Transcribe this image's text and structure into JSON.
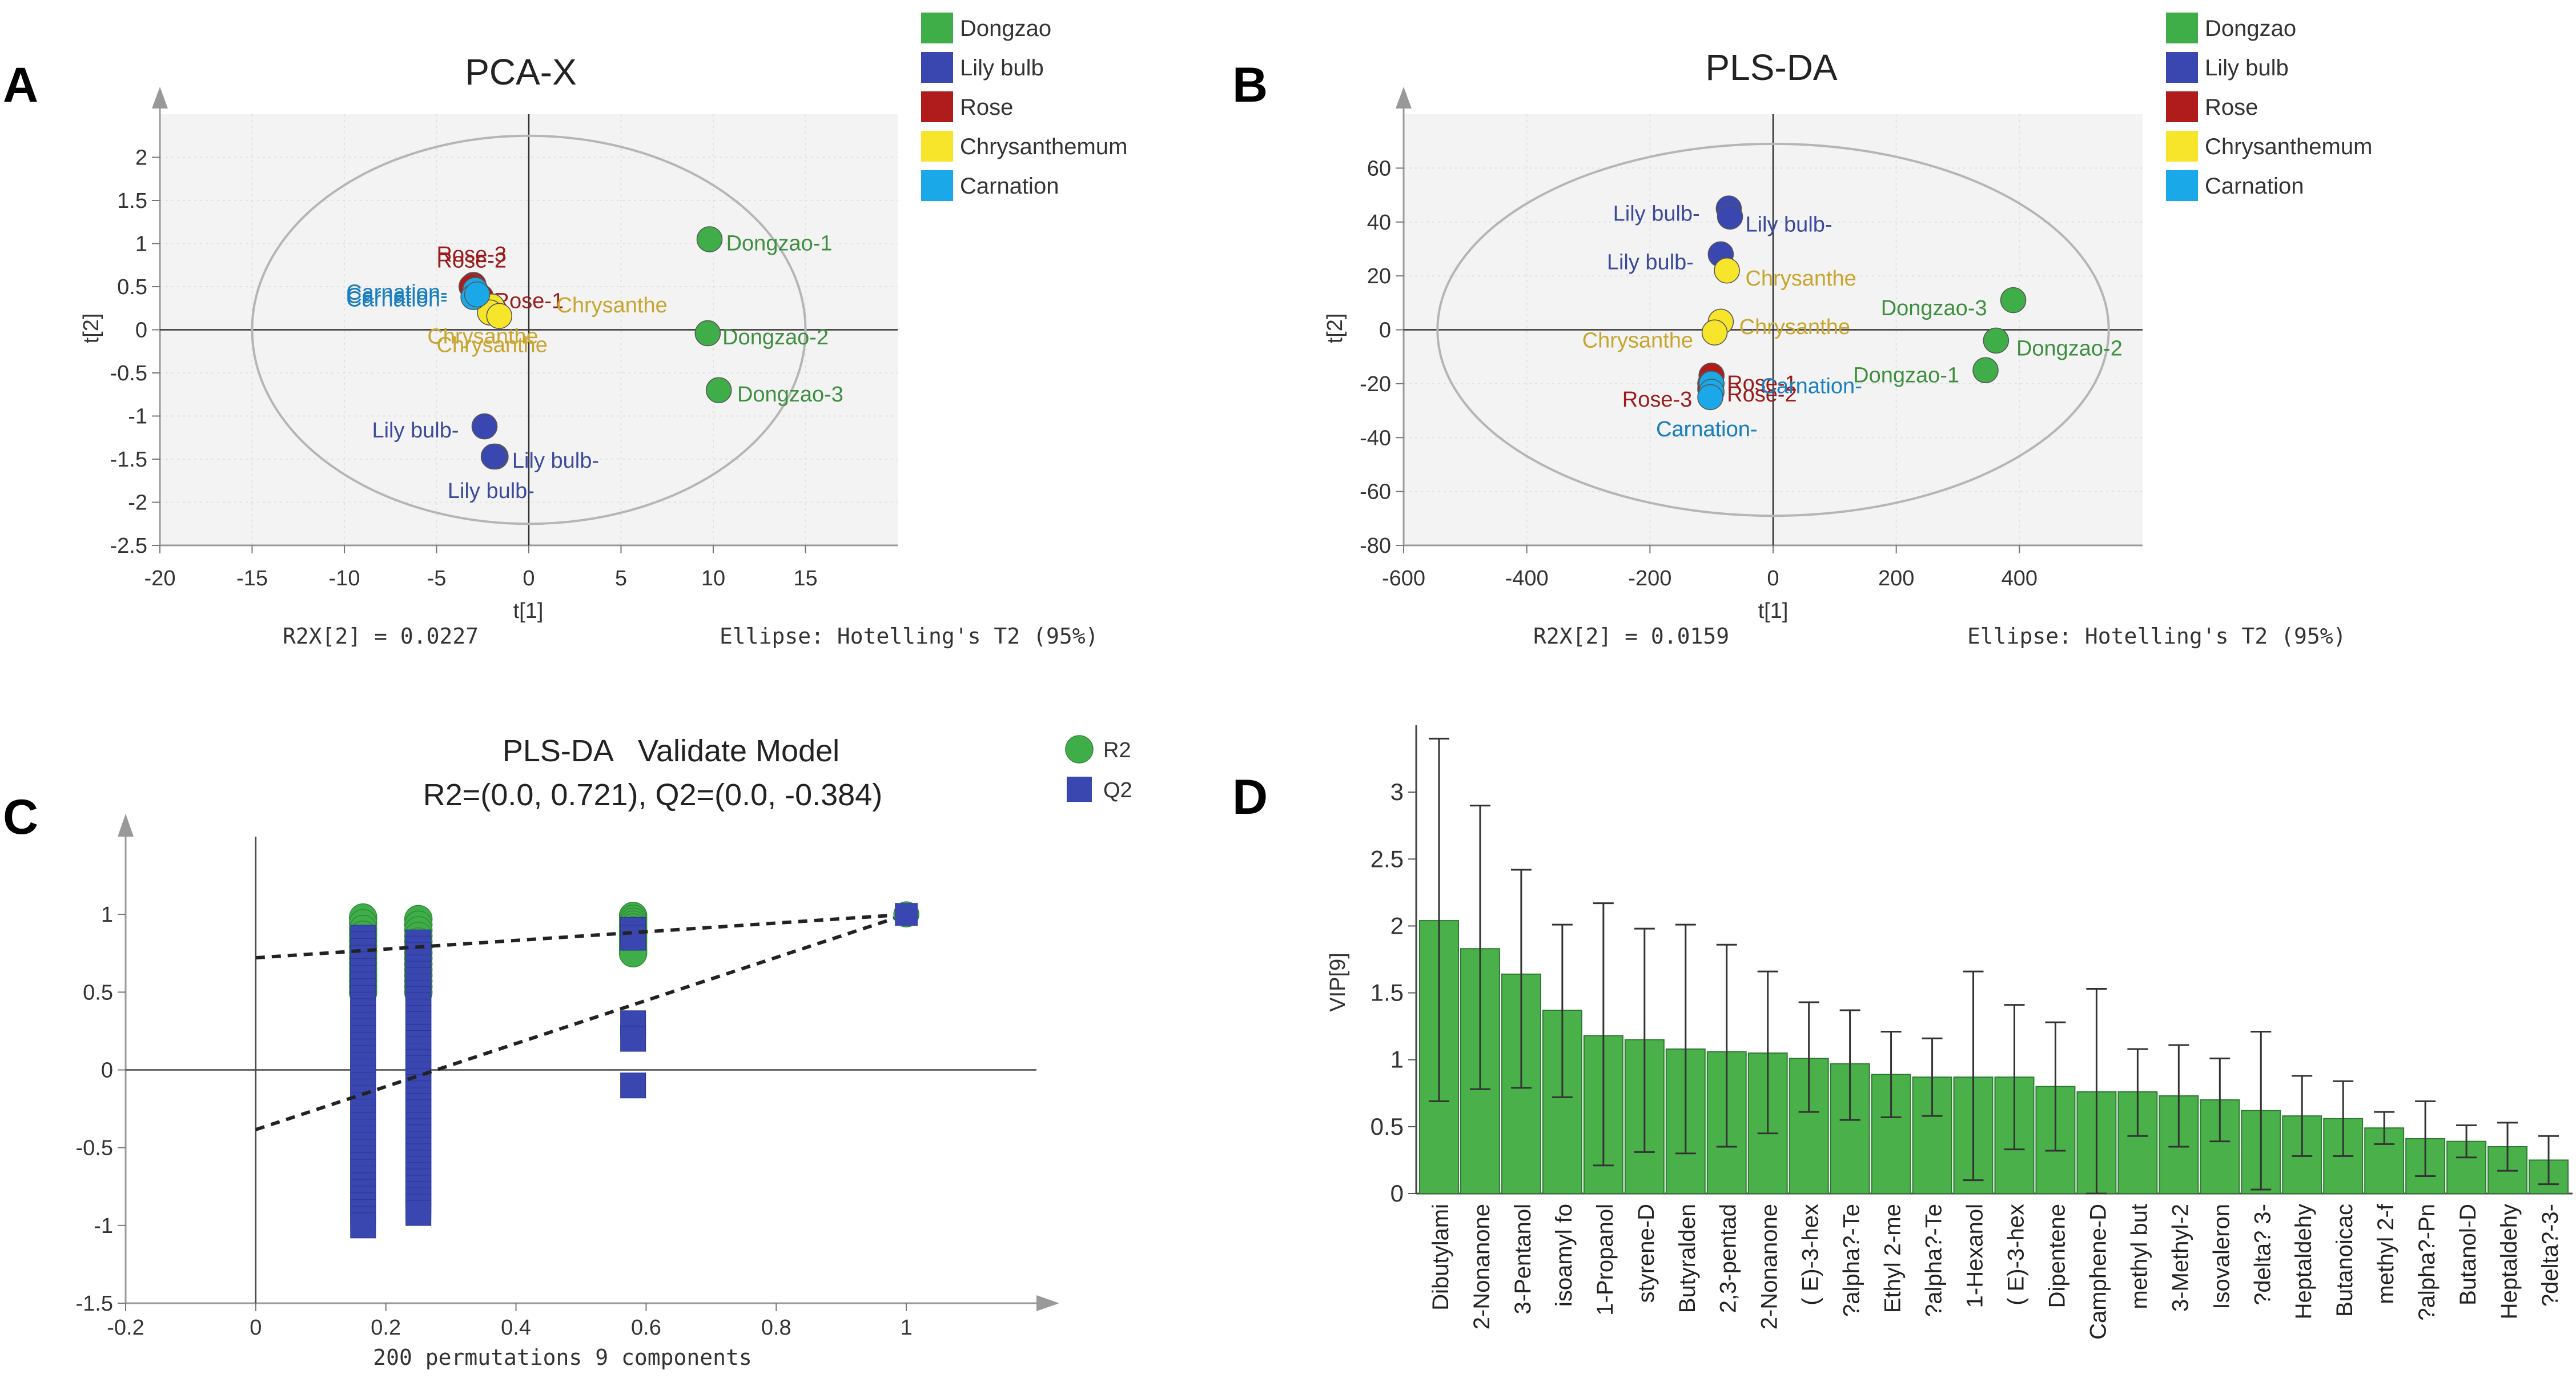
{
  "chart_data": [
    {
      "panel": "A",
      "type": "scatter",
      "title": "PCA-X",
      "xlabel": "t[1]",
      "ylabel": "t[2]",
      "xlim": [
        -20,
        20
      ],
      "ylim": [
        -2.5,
        2.5
      ],
      "xticks": [
        -20,
        -15,
        -10,
        -5,
        0,
        5,
        10,
        15
      ],
      "yticks": [
        -2.5,
        -2,
        -1.5,
        -1,
        -0.5,
        0,
        0.5,
        1,
        1.5,
        2
      ],
      "footer_left": "R2X[2] = 0.0227",
      "footer_right": "Ellipse: Hotelling's T2 (95%)",
      "ellipse": {
        "rx": 15,
        "ry": 2.25
      },
      "legend": [
        {
          "name": "Dongzao",
          "color": "#3fae49"
        },
        {
          "name": "Lily bulb",
          "color": "#3a47b0"
        },
        {
          "name": "Rose",
          "color": "#b01c1c"
        },
        {
          "name": "Chrysanthemum",
          "color": "#f6e52b"
        },
        {
          "name": "Carnation",
          "color": "#1ba8e8"
        }
      ],
      "points": [
        {
          "label": "Dongzao-1",
          "x": 9.8,
          "y": 1.05,
          "group": 0,
          "lx": 10.7,
          "ly": 1.0
        },
        {
          "label": "Dongzao-2",
          "x": 9.7,
          "y": -0.04,
          "group": 0,
          "lx": 10.5,
          "ly": -0.09
        },
        {
          "label": "Dongzao-3",
          "x": 10.3,
          "y": -0.7,
          "group": 0,
          "lx": 11.3,
          "ly": -0.75
        },
        {
          "label": "Lily bulb-",
          "x": -2.4,
          "y": -1.12,
          "group": 1,
          "lx": -8.5,
          "ly": -1.17
        },
        {
          "label": "Lily bulb-",
          "x": -1.8,
          "y": -1.47,
          "group": 1,
          "lx": -0.9,
          "ly": -1.52
        },
        {
          "label": "Lily bulb-",
          "x": -1.9,
          "y": -1.47,
          "group": 1,
          "lx": -4.4,
          "ly": -1.87
        },
        {
          "label": "Rose-3",
          "x": -3.0,
          "y": 0.52,
          "group": 2,
          "lx": -5.0,
          "ly": 0.87
        },
        {
          "label": "Rose-2",
          "x": -3.1,
          "y": 0.5,
          "group": 2,
          "lx": -5.0,
          "ly": 0.8
        },
        {
          "label": "Rose-1",
          "x": -2.6,
          "y": 0.38,
          "group": 2,
          "lx": -1.9,
          "ly": 0.33
        },
        {
          "label": "Chrysanthe",
          "x": -2.0,
          "y": 0.27,
          "group": 3,
          "lx": 1.5,
          "ly": 0.28
        },
        {
          "label": "Chrysanthe",
          "x": -2.1,
          "y": 0.2,
          "group": 3,
          "lx": -5.5,
          "ly": -0.08
        },
        {
          "label": "Chrysanthe",
          "x": -1.6,
          "y": 0.16,
          "group": 3,
          "lx": -5.0,
          "ly": -0.18
        },
        {
          "label": "Carnation-",
          "x": -2.9,
          "y": 0.46,
          "group": 4,
          "lx": -9.9,
          "ly": 0.43
        },
        {
          "label": "Carnation-",
          "x": -3.0,
          "y": 0.38,
          "group": 4,
          "lx": -9.9,
          "ly": 0.35
        },
        {
          "label": "Carnation-",
          "x": -2.8,
          "y": 0.41,
          "group": 4,
          "lx": -9.9,
          "ly": 0.39
        }
      ]
    },
    {
      "panel": "B",
      "type": "scatter",
      "title": "PLS-DA",
      "xlabel": "t[1]",
      "ylabel": "t[2]",
      "xlim": [
        -600,
        600
      ],
      "ylim": [
        -80,
        80
      ],
      "xticks": [
        -600,
        -400,
        -200,
        0,
        200,
        400
      ],
      "yticks": [
        -80,
        -60,
        -40,
        -20,
        0,
        20,
        40,
        60
      ],
      "footer_left": "R2X[2] = 0.0159",
      "footer_right": "Ellipse: Hotelling's T2 (95%)",
      "ellipse": {
        "rx": 545,
        "ry": 69
      },
      "legend": [
        {
          "name": "Dongzao",
          "color": "#3fae49"
        },
        {
          "name": "Lily bulb",
          "color": "#3a47b0"
        },
        {
          "name": "Rose",
          "color": "#b01c1c"
        },
        {
          "name": "Chrysanthemum",
          "color": "#f6e52b"
        },
        {
          "name": "Carnation",
          "color": "#1ba8e8"
        }
      ],
      "points": [
        {
          "label": "Dongzao-3",
          "x": 390,
          "y": 11,
          "group": 0,
          "lx": 175,
          "ly": 8
        },
        {
          "label": "Dongzao-2",
          "x": 362,
          "y": -4,
          "group": 0,
          "lx": 395,
          "ly": -7
        },
        {
          "label": "Dongzao-1",
          "x": 345,
          "y": -15,
          "group": 0,
          "lx": 130,
          "ly": -17
        },
        {
          "label": "Lily bulb-",
          "x": -72,
          "y": 45,
          "group": 1,
          "lx": -260,
          "ly": 43
        },
        {
          "label": "Lily bulb-",
          "x": -70,
          "y": 42,
          "group": 1,
          "lx": -45,
          "ly": 39
        },
        {
          "label": "Lily bulb-",
          "x": -85,
          "y": 28,
          "group": 1,
          "lx": -270,
          "ly": 25
        },
        {
          "label": "Chrysanthe",
          "x": -75,
          "y": 22,
          "group": 3,
          "lx": -45,
          "ly": 19
        },
        {
          "label": "Chrysanthe",
          "x": -85,
          "y": 3,
          "group": 3,
          "lx": -55,
          "ly": 1
        },
        {
          "label": "Chrysanthe",
          "x": -95,
          "y": -1,
          "group": 3,
          "lx": -310,
          "ly": -4
        },
        {
          "label": "Rose-1",
          "x": -100,
          "y": -17,
          "group": 2,
          "lx": -75,
          "ly": -20
        },
        {
          "label": "Rose-2",
          "x": -102,
          "y": -20,
          "group": 2,
          "lx": -75,
          "ly": -24
        },
        {
          "label": "Rose-3",
          "x": -102,
          "y": -22,
          "group": 2,
          "lx": -245,
          "ly": -26
        },
        {
          "label": "Carnation-",
          "x": -100,
          "y": -20,
          "group": 4,
          "lx": -20,
          "ly": -21
        },
        {
          "label": "Carnation-",
          "x": -100,
          "y": -23,
          "group": 4,
          "lx": -190,
          "ly": -37
        },
        {
          "label": "Carnation-",
          "x": -102,
          "y": -25,
          "group": 4,
          "lx": -190,
          "ly": -37
        }
      ]
    },
    {
      "panel": "C",
      "type": "scatter",
      "title_line1": "PLS-DA   Validate Model",
      "title_line2": "R2=(0.0, 0.721), Q2=(0.0, -0.384)",
      "xlabel": "200 permutations 9 components",
      "xlim": [
        -0.2,
        1.2
      ],
      "ylim": [
        -1.5,
        1.5
      ],
      "xticks": [
        -0.2,
        0,
        0.2,
        0.4,
        0.6,
        0.8,
        1
      ],
      "yticks": [
        -1.5,
        -1,
        -0.5,
        0,
        0.5,
        1
      ],
      "legend": [
        {
          "name": "R2",
          "color": "#3fae49",
          "shape": "circle"
        },
        {
          "name": "Q2",
          "color": "#3a47b0",
          "shape": "square"
        }
      ],
      "r2_columns": [
        {
          "x": 0.165,
          "ymin": 0.5,
          "ymax": 0.98
        },
        {
          "x": 0.25,
          "ymin": 0.5,
          "ymax": 0.97
        },
        {
          "x": 0.58,
          "ymin": 0.75,
          "ymax": 0.99
        }
      ],
      "q2_columns": [
        {
          "x": 0.165,
          "ymin": -1.0,
          "ymax": 0.85
        },
        {
          "x": 0.25,
          "ymin": -0.92,
          "ymax": 0.82
        },
        {
          "x": 0.58,
          "values": [
            0.9,
            0.85,
            0.3,
            0.2,
            -0.1
          ]
        }
      ],
      "final": {
        "x": 1.0,
        "r2": 1.0,
        "q2": 1.0
      },
      "r2_line": {
        "intercept": 0.721,
        "end": 1.0
      },
      "q2_line": {
        "intercept": -0.384,
        "end": 1.0
      }
    },
    {
      "panel": "D",
      "type": "bar",
      "ylabel": "VIP[9]",
      "ylim": [
        0,
        3.5
      ],
      "yticks": [
        0,
        0.5,
        1,
        1.5,
        2,
        2.5,
        3
      ],
      "categories": [
        "Dibutylami",
        "2-Nonanone",
        "3-Pentanol",
        "isoamyl fo",
        "1-Propanol",
        "styrene-D",
        "Butyralden",
        "2,3-pentad",
        "2-Nonanone",
        "( E)-3-hex",
        "?alpha?-Te",
        "Ethyl 2-me",
        "?alpha?-Te",
        "1-Hexanol",
        "( E)-3-hex",
        "Dipentene",
        "Camphene-D",
        "methyl but",
        "3-Methyl-2",
        "Isovaleron",
        "?delta? 3-",
        "Heptaldehy",
        "Butanoicac",
        "methyl 2-f",
        "?alpha?-Pn",
        "Butanol-D",
        "Heptaldehy",
        "?delta?-3-"
      ],
      "values": [
        2.04,
        1.83,
        1.64,
        1.37,
        1.18,
        1.15,
        1.08,
        1.06,
        1.05,
        1.01,
        0.97,
        0.89,
        0.87,
        0.87,
        0.87,
        0.8,
        0.76,
        0.76,
        0.73,
        0.7,
        0.62,
        0.58,
        0.56,
        0.49,
        0.41,
        0.39,
        0.35,
        0.25
      ],
      "err_upper": [
        3.4,
        2.9,
        2.42,
        2.01,
        2.17,
        1.98,
        2.01,
        1.86,
        1.66,
        1.43,
        1.37,
        1.21,
        1.16,
        1.66,
        1.41,
        1.28,
        1.53,
        1.08,
        1.11,
        1.01,
        1.21,
        0.88,
        0.84,
        0.61,
        0.69,
        0.51,
        0.53,
        0.43
      ],
      "err_lower": [
        0.69,
        0.78,
        0.79,
        0.72,
        0.21,
        0.31,
        0.3,
        0.35,
        0.45,
        0.61,
        0.55,
        0.57,
        0.58,
        0.1,
        0.33,
        0.32,
        0.0,
        0.43,
        0.35,
        0.39,
        0.03,
        0.28,
        0.28,
        0.37,
        0.13,
        0.27,
        0.17,
        0.07
      ]
    }
  ],
  "panel_letters": [
    "A",
    "B",
    "C",
    "D"
  ]
}
